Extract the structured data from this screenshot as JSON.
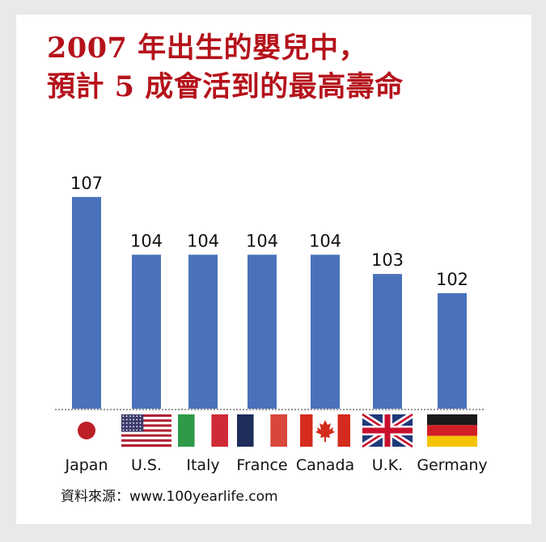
{
  "title_line1": "2007 年出生的嬰兒中，",
  "title_line2": "預計 5 成會活到的最高壽命",
  "source": "資料來源：www.100yearlife.com",
  "colors": {
    "bar": "#4a72ba",
    "title": "#b5121b",
    "background": "#e9e9e9",
    "card": "#ffffff"
  },
  "chart_data": {
    "type": "bar",
    "title": "2007 年出生的嬰兒中，預計 5 成會活到的最高壽命",
    "categories": [
      "Japan",
      "U.S.",
      "Italy",
      "France",
      "Canada",
      "U.K.",
      "Germany"
    ],
    "values": [
      107,
      104,
      104,
      104,
      104,
      103,
      102
    ],
    "flags": [
      "japan-flag",
      "usa-flag",
      "italy-flag",
      "france-flag",
      "canada-flag",
      "uk-flag",
      "germany-flag"
    ],
    "ylim": [
      96,
      108
    ],
    "grid": false,
    "legend": "none"
  }
}
